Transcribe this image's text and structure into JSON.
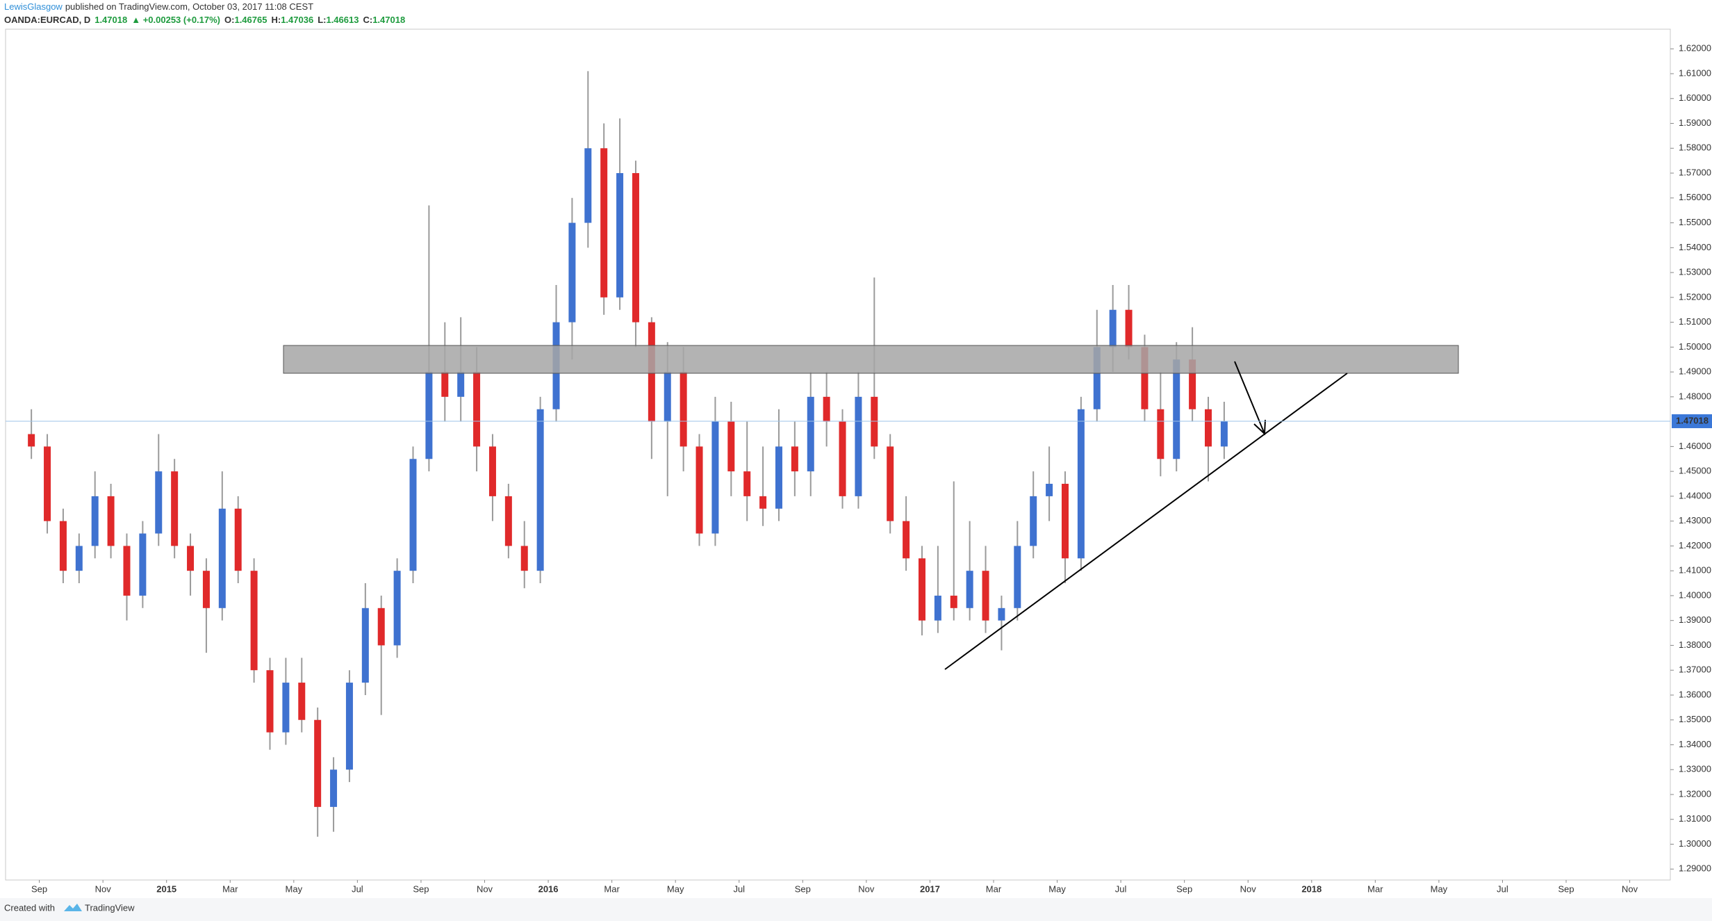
{
  "header": {
    "author": "LewisGlasgow",
    "published": "published on TradingView.com, October 03, 2017 11:08 CEST",
    "symbol": "OANDA:EURCAD, D",
    "last": "1.47018",
    "change": "▲ +0.00253 (+0.17%)",
    "o_label": "O:",
    "o": "1.46765",
    "h_label": "H:",
    "h": "1.47036",
    "l_label": "L:",
    "l": "1.46613",
    "c_label": "C:",
    "c": "1.47018"
  },
  "footer": {
    "created": "Created with",
    "brand": "TradingView"
  },
  "chart_data": {
    "type": "candlestick",
    "categories": [
      null,
      "Sep",
      null,
      null,
      null,
      "Nov",
      null,
      null,
      null,
      "2015",
      null,
      null,
      null,
      "Mar",
      null,
      null,
      null,
      "May",
      null,
      null,
      null,
      "Jul",
      null,
      null,
      null,
      "Sep",
      null,
      null,
      null,
      "Nov",
      null,
      null,
      null,
      "2016",
      null,
      null,
      null,
      "Mar",
      null,
      null,
      null,
      "May",
      null,
      null,
      null,
      "Jul",
      null,
      null,
      null,
      "Sep",
      null,
      null,
      null,
      "Nov",
      null,
      null,
      null,
      "2017",
      null,
      null,
      null,
      "Mar",
      null,
      null,
      null,
      "May",
      null,
      null,
      null,
      "Jul",
      null,
      null,
      null,
      "Sep",
      null,
      null,
      null,
      "Nov",
      null,
      null,
      null,
      "2018",
      null,
      null,
      null,
      "Mar",
      null,
      null,
      null,
      "May",
      null,
      null,
      null,
      "Jul",
      null,
      null,
      null,
      "Sep",
      null,
      null,
      null,
      "Nov",
      null,
      null
    ],
    "open": [
      1.465,
      1.46,
      1.43,
      1.41,
      1.42,
      1.44,
      1.42,
      1.4,
      1.425,
      1.45,
      1.42,
      1.41,
      1.395,
      1.435,
      1.41,
      1.37,
      1.345,
      1.365,
      1.35,
      1.315,
      1.33,
      1.365,
      1.395,
      1.38,
      1.41,
      1.455,
      1.49,
      1.48,
      1.49,
      1.46,
      1.44,
      1.42,
      1.41,
      1.475,
      1.51,
      1.55,
      1.58,
      1.52,
      1.57,
      1.51,
      1.47,
      1.49,
      1.46,
      1.425,
      1.47,
      1.45,
      1.44,
      1.435,
      1.46,
      1.45,
      1.48,
      1.47,
      1.44,
      1.48,
      1.46,
      1.43,
      1.415,
      1.39,
      1.4,
      1.395,
      1.41,
      1.39,
      1.395,
      1.42,
      1.44,
      1.445,
      1.415,
      1.475,
      1.5,
      1.515,
      1.5,
      1.475,
      1.455,
      1.495,
      1.475,
      1.46,
      null,
      null,
      null,
      null,
      null,
      null,
      null,
      null,
      null,
      null,
      null,
      null,
      null,
      null,
      null,
      null,
      null,
      null,
      null,
      null,
      null,
      null,
      null,
      null,
      null,
      null,
      null,
      null
    ],
    "high": [
      1.475,
      1.465,
      1.435,
      1.425,
      1.45,
      1.445,
      1.425,
      1.43,
      1.465,
      1.455,
      1.425,
      1.415,
      1.45,
      1.44,
      1.415,
      1.375,
      1.375,
      1.375,
      1.355,
      1.335,
      1.37,
      1.405,
      1.4,
      1.415,
      1.46,
      1.557,
      1.51,
      1.512,
      1.5,
      1.465,
      1.445,
      1.43,
      1.48,
      1.525,
      1.56,
      1.611,
      1.59,
      1.592,
      1.575,
      1.512,
      1.502,
      1.5,
      1.465,
      1.48,
      1.478,
      1.47,
      1.46,
      1.475,
      1.47,
      1.49,
      1.49,
      1.475,
      1.49,
      1.528,
      1.465,
      1.44,
      1.42,
      1.42,
      1.446,
      1.43,
      1.42,
      1.4,
      1.43,
      1.45,
      1.46,
      1.45,
      1.48,
      1.515,
      1.525,
      1.525,
      1.505,
      1.49,
      1.502,
      1.508,
      1.48,
      1.478,
      null,
      null,
      null,
      null,
      null,
      null,
      null,
      null,
      null,
      null,
      null,
      null,
      null,
      null,
      null,
      null,
      null,
      null,
      null,
      null,
      null,
      null,
      null,
      null,
      null,
      null,
      null,
      null
    ],
    "low": [
      1.455,
      1.425,
      1.405,
      1.405,
      1.415,
      1.415,
      1.39,
      1.395,
      1.42,
      1.415,
      1.4,
      1.377,
      1.39,
      1.405,
      1.365,
      1.338,
      1.34,
      1.345,
      1.303,
      1.305,
      1.325,
      1.36,
      1.352,
      1.375,
      1.405,
      1.45,
      1.47,
      1.47,
      1.45,
      1.43,
      1.415,
      1.403,
      1.405,
      1.47,
      1.495,
      1.54,
      1.513,
      1.515,
      1.5,
      1.455,
      1.44,
      1.45,
      1.42,
      1.42,
      1.44,
      1.43,
      1.428,
      1.43,
      1.44,
      1.44,
      1.46,
      1.435,
      1.435,
      1.455,
      1.425,
      1.41,
      1.384,
      1.385,
      1.39,
      1.39,
      1.385,
      1.378,
      1.39,
      1.415,
      1.43,
      1.405,
      1.41,
      1.47,
      1.49,
      1.495,
      1.47,
      1.448,
      1.45,
      1.47,
      1.446,
      1.455,
      null,
      null,
      null,
      null,
      null,
      null,
      null,
      null,
      null,
      null,
      null,
      null,
      null,
      null,
      null,
      null,
      null,
      null,
      null,
      null,
      null,
      null,
      null,
      null,
      null,
      null,
      null,
      null
    ],
    "close": [
      1.46,
      1.43,
      1.41,
      1.42,
      1.44,
      1.42,
      1.4,
      1.425,
      1.45,
      1.42,
      1.41,
      1.395,
      1.435,
      1.41,
      1.37,
      1.345,
      1.365,
      1.35,
      1.315,
      1.33,
      1.365,
      1.395,
      1.38,
      1.41,
      1.455,
      1.49,
      1.48,
      1.49,
      1.46,
      1.44,
      1.42,
      1.41,
      1.475,
      1.51,
      1.55,
      1.58,
      1.52,
      1.57,
      1.51,
      1.47,
      1.49,
      1.46,
      1.425,
      1.47,
      1.45,
      1.44,
      1.435,
      1.46,
      1.45,
      1.48,
      1.47,
      1.44,
      1.48,
      1.46,
      1.43,
      1.415,
      1.39,
      1.4,
      1.395,
      1.41,
      1.39,
      1.395,
      1.42,
      1.44,
      1.445,
      1.415,
      1.475,
      1.5,
      1.515,
      1.5,
      1.475,
      1.455,
      1.495,
      1.475,
      1.46,
      1.47018,
      null,
      null,
      null,
      null,
      null,
      null,
      null,
      null,
      null,
      null,
      null,
      null,
      null,
      null,
      null,
      null,
      null,
      null,
      null,
      null,
      null,
      null,
      null,
      null,
      null,
      null,
      null,
      null
    ],
    "up_color": "#3f72d0",
    "down_color": "#e0292a",
    "wick_color": "#9a9a9a",
    "last_price": {
      "value": 1.47018,
      "label": "1.47018"
    },
    "ylim": [
      1.2856,
      1.6279
    ],
    "yticks": [
      {
        "value": 1.29,
        "label": "1.29000"
      },
      {
        "value": 1.3,
        "label": "1.30000"
      },
      {
        "value": 1.31,
        "label": "1.31000"
      },
      {
        "value": 1.32,
        "label": "1.32000"
      },
      {
        "value": 1.33,
        "label": "1.33000"
      },
      {
        "value": 1.34,
        "label": "1.34000"
      },
      {
        "value": 1.35,
        "label": "1.35000"
      },
      {
        "value": 1.36,
        "label": "1.36000"
      },
      {
        "value": 1.37,
        "label": "1.37000"
      },
      {
        "value": 1.38,
        "label": "1.38000"
      },
      {
        "value": 1.39,
        "label": "1.39000"
      },
      {
        "value": 1.4,
        "label": "1.40000"
      },
      {
        "value": 1.41,
        "label": "1.41000"
      },
      {
        "value": 1.42,
        "label": "1.42000"
      },
      {
        "value": 1.43,
        "label": "1.43000"
      },
      {
        "value": 1.44,
        "label": "1.44000"
      },
      {
        "value": 1.45,
        "label": "1.45000"
      },
      {
        "value": 1.46,
        "label": "1.46000"
      },
      {
        "value": 1.48,
        "label": "1.48000"
      },
      {
        "value": 1.49,
        "label": "1.49000"
      },
      {
        "value": 1.5,
        "label": "1.50000"
      },
      {
        "value": 1.51,
        "label": "1.51000"
      },
      {
        "value": 1.52,
        "label": "1.52000"
      },
      {
        "value": 1.53,
        "label": "1.53000"
      },
      {
        "value": 1.54,
        "label": "1.54000"
      },
      {
        "value": 1.55,
        "label": "1.55000"
      },
      {
        "value": 1.56,
        "label": "1.56000"
      },
      {
        "value": 1.57,
        "label": "1.57000"
      },
      {
        "value": 1.58,
        "label": "1.58000"
      },
      {
        "value": 1.59,
        "label": "1.59000"
      },
      {
        "value": 1.6,
        "label": "1.60000"
      },
      {
        "value": 1.61,
        "label": "1.61000"
      },
      {
        "value": 1.62,
        "label": "1.62000"
      }
    ],
    "grid": false
  }
}
